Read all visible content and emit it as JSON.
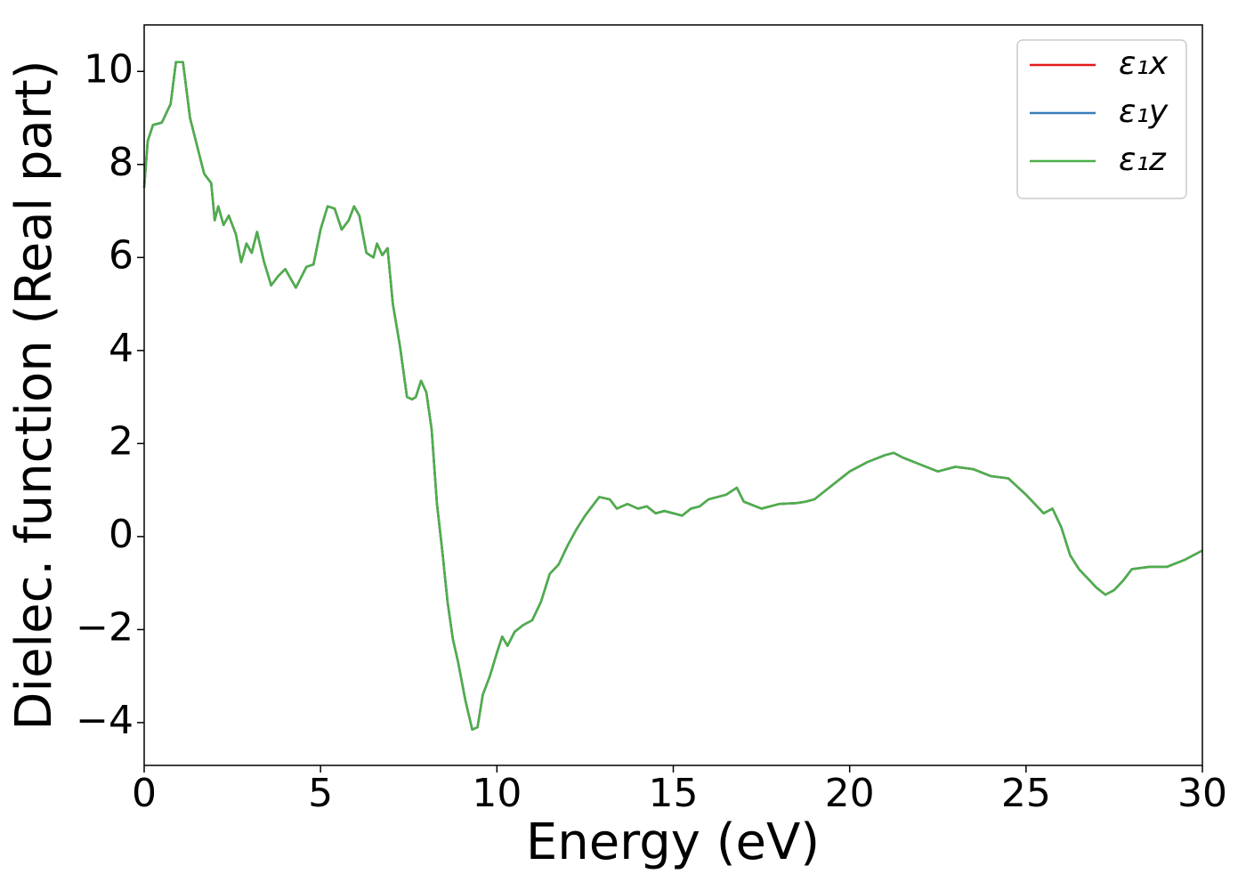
{
  "chart_data": {
    "type": "line",
    "xlabel": "Energy (eV)",
    "ylabel": "Dielec. function (Real part)",
    "x": [
      0,
      0.1,
      0.25,
      0.5,
      0.75,
      0.9,
      1.1,
      1.3,
      1.5,
      1.7,
      1.9,
      2.0,
      2.1,
      2.25,
      2.4,
      2.6,
      2.75,
      2.9,
      3.05,
      3.2,
      3.4,
      3.6,
      3.8,
      4.0,
      4.3,
      4.6,
      4.8,
      5.0,
      5.2,
      5.4,
      5.6,
      5.8,
      5.95,
      6.1,
      6.3,
      6.5,
      6.6,
      6.75,
      6.9,
      7.05,
      7.25,
      7.45,
      7.6,
      7.7,
      7.85,
      8.0,
      8.15,
      8.3,
      8.45,
      8.6,
      8.75,
      8.9,
      9.1,
      9.3,
      9.45,
      9.6,
      9.8,
      10.0,
      10.15,
      10.3,
      10.5,
      10.75,
      11.0,
      11.25,
      11.5,
      11.75,
      12.0,
      12.25,
      12.5,
      12.7,
      12.9,
      13.2,
      13.4,
      13.7,
      14.0,
      14.25,
      14.5,
      14.75,
      15.0,
      15.25,
      15.5,
      15.75,
      16.0,
      16.5,
      16.8,
      17.0,
      17.5,
      18.0,
      18.5,
      18.75,
      19.0,
      19.5,
      20.0,
      20.5,
      21.0,
      21.25,
      21.5,
      22.0,
      22.5,
      23.0,
      23.5,
      24.0,
      24.5,
      25.0,
      25.25,
      25.5,
      25.75,
      26.0,
      26.25,
      26.5,
      27.0,
      27.25,
      27.5,
      27.75,
      28.0,
      28.5,
      29.0,
      29.5,
      30.0
    ],
    "series": [
      {
        "name": "ε₁x",
        "color": "#e41a1c",
        "values": [
          7.5,
          8.5,
          8.85,
          8.9,
          9.3,
          10.2,
          10.2,
          9.0,
          8.4,
          7.8,
          7.6,
          6.8,
          7.1,
          6.7,
          6.9,
          6.5,
          5.9,
          6.3,
          6.1,
          6.55,
          5.9,
          5.4,
          5.6,
          5.75,
          5.35,
          5.8,
          5.85,
          6.6,
          7.1,
          7.05,
          6.6,
          6.8,
          7.1,
          6.9,
          6.1,
          6.0,
          6.3,
          6.05,
          6.2,
          5.0,
          4.1,
          3.0,
          2.95,
          3.0,
          3.35,
          3.1,
          2.3,
          0.7,
          -0.3,
          -1.4,
          -2.2,
          -2.7,
          -3.5,
          -4.15,
          -4.1,
          -3.4,
          -3.0,
          -2.5,
          -2.15,
          -2.35,
          -2.05,
          -1.9,
          -1.8,
          -1.4,
          -0.8,
          -0.6,
          -0.2,
          0.15,
          0.45,
          0.65,
          0.85,
          0.8,
          0.6,
          0.7,
          0.6,
          0.65,
          0.5,
          0.55,
          0.5,
          0.45,
          0.6,
          0.65,
          0.8,
          0.9,
          1.05,
          0.75,
          0.6,
          0.7,
          0.72,
          0.75,
          0.8,
          1.1,
          1.4,
          1.6,
          1.75,
          1.8,
          1.7,
          1.55,
          1.4,
          1.5,
          1.45,
          1.3,
          1.25,
          0.9,
          0.7,
          0.5,
          0.6,
          0.2,
          -0.4,
          -0.7,
          -1.1,
          -1.25,
          -1.15,
          -0.95,
          -0.7,
          -0.65,
          -0.65,
          -0.5,
          -0.3
        ]
      },
      {
        "name": "ε₁y",
        "color": "#377eb8",
        "values": [
          7.5,
          8.5,
          8.85,
          8.9,
          9.3,
          10.2,
          10.2,
          9.0,
          8.4,
          7.8,
          7.6,
          6.8,
          7.1,
          6.7,
          6.9,
          6.5,
          5.9,
          6.3,
          6.1,
          6.55,
          5.9,
          5.4,
          5.6,
          5.75,
          5.35,
          5.8,
          5.85,
          6.6,
          7.1,
          7.05,
          6.6,
          6.8,
          7.1,
          6.9,
          6.1,
          6.0,
          6.3,
          6.05,
          6.2,
          5.0,
          4.1,
          3.0,
          2.95,
          3.0,
          3.35,
          3.1,
          2.3,
          0.7,
          -0.3,
          -1.4,
          -2.2,
          -2.7,
          -3.5,
          -4.15,
          -4.1,
          -3.4,
          -3.0,
          -2.5,
          -2.15,
          -2.35,
          -2.05,
          -1.9,
          -1.8,
          -1.4,
          -0.8,
          -0.6,
          -0.2,
          0.15,
          0.45,
          0.65,
          0.85,
          0.8,
          0.6,
          0.7,
          0.6,
          0.65,
          0.5,
          0.55,
          0.5,
          0.45,
          0.6,
          0.65,
          0.8,
          0.9,
          1.05,
          0.75,
          0.6,
          0.7,
          0.72,
          0.75,
          0.8,
          1.1,
          1.4,
          1.6,
          1.75,
          1.8,
          1.7,
          1.55,
          1.4,
          1.5,
          1.45,
          1.3,
          1.25,
          0.9,
          0.7,
          0.5,
          0.6,
          0.2,
          -0.4,
          -0.7,
          -1.1,
          -1.25,
          -1.15,
          -0.95,
          -0.7,
          -0.65,
          -0.65,
          -0.5,
          -0.3
        ]
      },
      {
        "name": "ε₁z",
        "color": "#4daf4a",
        "values": [
          7.5,
          8.5,
          8.85,
          8.9,
          9.3,
          10.2,
          10.2,
          9.0,
          8.4,
          7.8,
          7.6,
          6.8,
          7.1,
          6.7,
          6.9,
          6.5,
          5.9,
          6.3,
          6.1,
          6.55,
          5.9,
          5.4,
          5.6,
          5.75,
          5.35,
          5.8,
          5.85,
          6.6,
          7.1,
          7.05,
          6.6,
          6.8,
          7.1,
          6.9,
          6.1,
          6.0,
          6.3,
          6.05,
          6.2,
          5.0,
          4.1,
          3.0,
          2.95,
          3.0,
          3.35,
          3.1,
          2.3,
          0.7,
          -0.3,
          -1.4,
          -2.2,
          -2.7,
          -3.5,
          -4.15,
          -4.1,
          -3.4,
          -3.0,
          -2.5,
          -2.15,
          -2.35,
          -2.05,
          -1.9,
          -1.8,
          -1.4,
          -0.8,
          -0.6,
          -0.2,
          0.15,
          0.45,
          0.65,
          0.85,
          0.8,
          0.6,
          0.7,
          0.6,
          0.65,
          0.5,
          0.55,
          0.5,
          0.45,
          0.6,
          0.65,
          0.8,
          0.9,
          1.05,
          0.75,
          0.6,
          0.7,
          0.72,
          0.75,
          0.8,
          1.1,
          1.4,
          1.6,
          1.75,
          1.8,
          1.7,
          1.55,
          1.4,
          1.5,
          1.45,
          1.3,
          1.25,
          0.9,
          0.7,
          0.5,
          0.6,
          0.2,
          -0.4,
          -0.7,
          -1.1,
          -1.25,
          -1.15,
          -0.95,
          -0.7,
          -0.65,
          -0.65,
          -0.5,
          -0.3
        ]
      }
    ],
    "xlim": [
      0,
      30
    ],
    "xticks": [
      0,
      5,
      10,
      15,
      20,
      25,
      30
    ],
    "ylim": [
      -4.92,
      11.0
    ],
    "yticks": [
      {
        "value": -4,
        "label": "−4"
      },
      {
        "value": -2,
        "label": "−2"
      },
      0,
      2,
      4,
      6,
      8,
      10
    ],
    "legend": "upper right",
    "grid": false
  }
}
